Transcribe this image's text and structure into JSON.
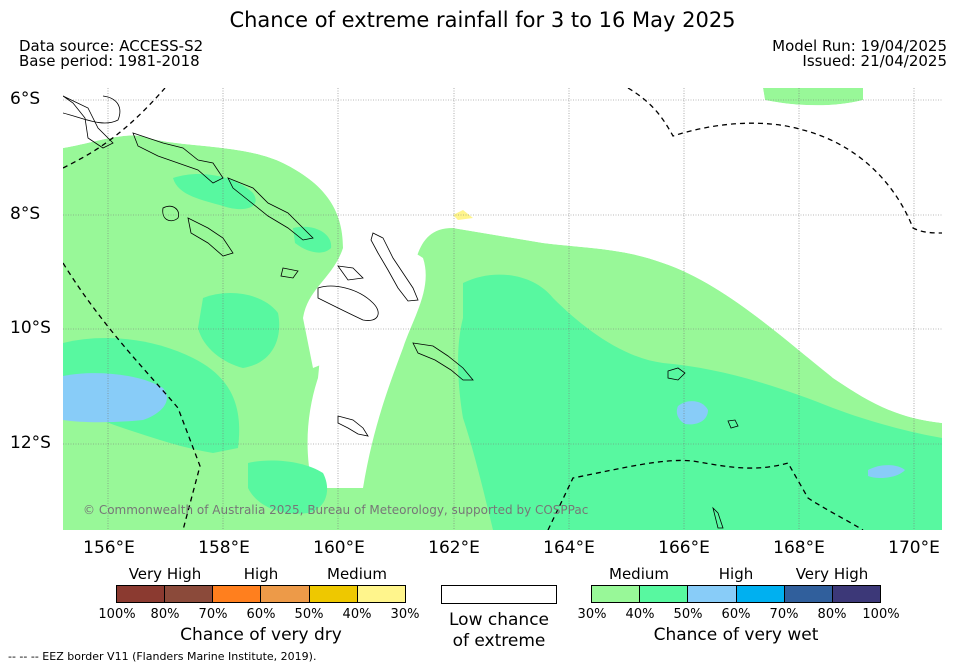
{
  "title": "Chance of extreme rainfall for 3 to 16 May 2025",
  "header": {
    "data_source": "Data source: ACCESS-S2",
    "base_period": "Base period: 1981-2018",
    "model_run": "Model Run: 19/04/2025",
    "issued": "Issued: 21/04/2025"
  },
  "map": {
    "lat_labels": [
      "6°S",
      "8°S",
      "10°S",
      "12°S"
    ],
    "lon_labels": [
      "156°E",
      "158°E",
      "160°E",
      "162°E",
      "164°E",
      "166°E",
      "168°E",
      "170°E"
    ],
    "copyright": "© Commonwealth of Australia 2025, Bureau of Meteorology, supported by COSPPac",
    "colors": {
      "wet_30_40": "#98f898",
      "wet_40_50": "#58f8a0",
      "wet_50_60": "#88ccf8",
      "dry_30_40": "#fff58c"
    }
  },
  "legend": {
    "dry": {
      "categories": [
        "Very High",
        "High",
        "Medium"
      ],
      "ticks": [
        "100%",
        "80%",
        "70%",
        "60%",
        "50%",
        "40%",
        "30%"
      ],
      "colors": [
        "#8b3a30",
        "#8b4a3a",
        "#ff7f1e",
        "#ed9a48",
        "#eec800",
        "#fff58c"
      ],
      "title": "Chance of very dry"
    },
    "low": {
      "line1": "Low chance",
      "line2": "of extreme"
    },
    "wet": {
      "categories": [
        "Medium",
        "High",
        "Very High"
      ],
      "ticks": [
        "30%",
        "40%",
        "50%",
        "60%",
        "70%",
        "80%",
        "100%"
      ],
      "colors": [
        "#98f898",
        "#58f8a0",
        "#88ccf8",
        "#00b0f0",
        "#305f9c",
        "#3c3878"
      ],
      "title": "Chance of very wet"
    }
  },
  "footnote": "--  --  -- EEZ border V11 (Flanders Marine Institute, 2019)."
}
